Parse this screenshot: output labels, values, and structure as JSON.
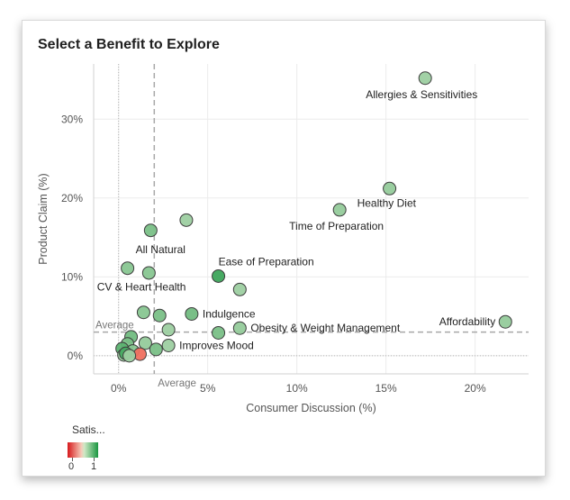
{
  "chart_data": {
    "type": "scatter",
    "title": "Select a Benefit to Explore",
    "xlabel": "Consumer Discussion (%)",
    "ylabel": "Product Claim (%)",
    "xlim": [
      -1.4,
      23
    ],
    "ylim": [
      -2.3,
      37
    ],
    "xticks": [
      0,
      5,
      10,
      15,
      20
    ],
    "xtick_labels": [
      "0%",
      "5%",
      "10%",
      "15%",
      "20%"
    ],
    "yticks": [
      0,
      10,
      20,
      30
    ],
    "ytick_labels": [
      "0%",
      "10%",
      "20%",
      "30%"
    ],
    "reference_lines": {
      "x_average": 2.0,
      "y_average": 3.0,
      "x_label": "Average",
      "y_label": "Average"
    },
    "points": [
      {
        "x": 17.2,
        "y": 35.2,
        "sat": 0.7,
        "label": "Allergies & Sensitivities",
        "label_pos": "below"
      },
      {
        "x": 15.2,
        "y": 21.2,
        "sat": 0.72,
        "label": "Healthy Diet",
        "label_pos": "below"
      },
      {
        "x": 12.4,
        "y": 18.5,
        "sat": 0.72,
        "label": "Time of Preparation",
        "label_pos": "below"
      },
      {
        "x": 21.7,
        "y": 4.3,
        "sat": 0.72,
        "label": "Affordability",
        "label_pos": "left"
      },
      {
        "x": 5.6,
        "y": 10.1,
        "sat": 0.92,
        "label": "Ease of Preparation",
        "label_pos": "above"
      },
      {
        "x": 1.7,
        "y": 10.5,
        "sat": 0.75,
        "label": "All Natural",
        "label_pos": "above"
      },
      {
        "x": 1.4,
        "y": 5.5,
        "sat": 0.75,
        "label": "CV & Heart Health",
        "label_pos": "above"
      },
      {
        "x": 4.1,
        "y": 5.3,
        "sat": 0.8,
        "label": "Indulgence",
        "label_pos": "right"
      },
      {
        "x": 6.8,
        "y": 3.5,
        "sat": 0.72,
        "label": "Obesity & Weight Management",
        "label_pos": "right"
      },
      {
        "x": 2.8,
        "y": 1.3,
        "sat": 0.7,
        "label": "Improves Mood",
        "label_pos": "right"
      },
      {
        "x": 3.8,
        "y": 17.2,
        "sat": 0.7,
        "label": ""
      },
      {
        "x": 1.8,
        "y": 15.9,
        "sat": 0.78,
        "label": ""
      },
      {
        "x": 0.5,
        "y": 11.1,
        "sat": 0.75,
        "label": ""
      },
      {
        "x": 6.8,
        "y": 8.4,
        "sat": 0.7,
        "label": ""
      },
      {
        "x": 2.3,
        "y": 5.1,
        "sat": 0.78,
        "label": ""
      },
      {
        "x": 2.8,
        "y": 3.3,
        "sat": 0.7,
        "label": ""
      },
      {
        "x": 5.6,
        "y": 2.9,
        "sat": 0.78,
        "label": ""
      },
      {
        "x": 0.7,
        "y": 2.4,
        "sat": 0.8,
        "label": ""
      },
      {
        "x": 1.5,
        "y": 1.6,
        "sat": 0.72,
        "label": ""
      },
      {
        "x": 2.1,
        "y": 0.8,
        "sat": 0.78,
        "label": ""
      },
      {
        "x": 0.5,
        "y": 1.5,
        "sat": 0.78,
        "label": ""
      },
      {
        "x": 0.2,
        "y": 0.9,
        "sat": 0.85,
        "label": ""
      },
      {
        "x": 0.8,
        "y": 0.6,
        "sat": 0.75,
        "label": ""
      },
      {
        "x": 1.2,
        "y": 0.2,
        "sat": 0.08,
        "label": ""
      },
      {
        "x": 0.3,
        "y": 0.1,
        "sat": 0.7,
        "label": ""
      },
      {
        "x": 0.4,
        "y": 0.3,
        "sat": 0.9,
        "label": ""
      },
      {
        "x": 0.6,
        "y": 0.0,
        "sat": 0.7,
        "label": ""
      }
    ],
    "color_legend": {
      "title": "Satis...",
      "min_label": "0",
      "max_label": "1",
      "low_color": "#d7191c",
      "high_color": "#1a9641"
    }
  }
}
